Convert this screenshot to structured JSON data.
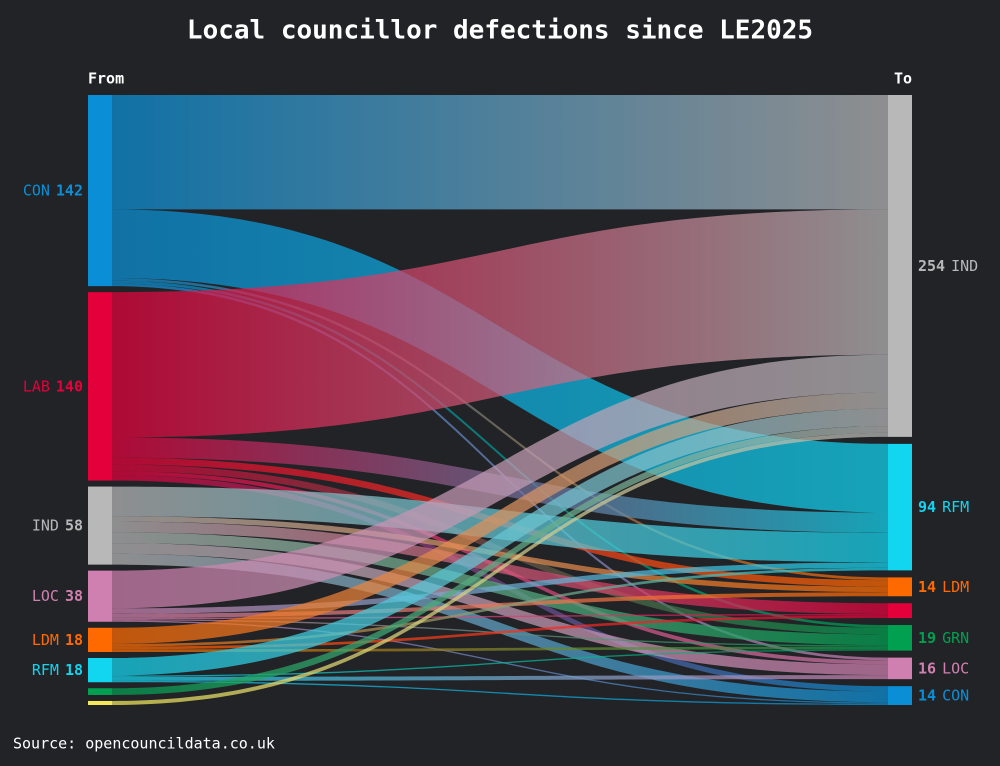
{
  "chart_data": {
    "type": "sankey",
    "title": "Local councillor defections since LE2025",
    "from_label": "From",
    "to_label": "To",
    "source_note": "Source: opencouncildata.co.uk",
    "sources": [
      {
        "name": "CON",
        "value": 142,
        "color": "#0a8fd6"
      },
      {
        "name": "LAB",
        "value": 140,
        "color": "#e4003b"
      },
      {
        "name": "IND",
        "value": 58,
        "color": "#b8b8b8"
      },
      {
        "name": "LOC",
        "value": 38,
        "color": "#d080b0"
      },
      {
        "name": "LDM",
        "value": 18,
        "color": "#ff6a00"
      },
      {
        "name": "RFM",
        "value": 18,
        "color": "#12d5f0"
      },
      {
        "name": null,
        "value": 5,
        "color": "#00a050"
      },
      {
        "name": null,
        "value": 3,
        "color": "#f2e85a"
      }
    ],
    "targets": [
      {
        "name": "IND",
        "value": 254,
        "color": "#b8b8b8"
      },
      {
        "name": "RFM",
        "value": 94,
        "color": "#12d5f0"
      },
      {
        "name": "LDM",
        "value": 14,
        "color": "#ff6a00"
      },
      {
        "name": null,
        "value": 11,
        "color": "#e4003b"
      },
      {
        "name": "GRN",
        "value": 19,
        "color": "#00a050"
      },
      {
        "name": "LOC",
        "value": 16,
        "color": "#d080b0"
      },
      {
        "name": "CON",
        "value": 14,
        "color": "#0a8fd6"
      }
    ],
    "links": [
      {
        "source": 0,
        "target": 0,
        "value": 85
      },
      {
        "source": 0,
        "target": 1,
        "value": 51
      },
      {
        "source": 0,
        "target": 2,
        "value": 2
      },
      {
        "source": 0,
        "target": 4,
        "value": 2
      },
      {
        "source": 0,
        "target": 5,
        "value": 2
      },
      {
        "source": 1,
        "target": 0,
        "value": 108
      },
      {
        "source": 1,
        "target": 1,
        "value": 15
      },
      {
        "source": 1,
        "target": 2,
        "value": 5
      },
      {
        "source": 1,
        "target": 4,
        "value": 5
      },
      {
        "source": 1,
        "target": 5,
        "value": 3
      },
      {
        "source": 1,
        "target": 6,
        "value": 4
      },
      {
        "source": 2,
        "target": 1,
        "value": 22
      },
      {
        "source": 2,
        "target": 2,
        "value": 4
      },
      {
        "source": 2,
        "target": 3,
        "value": 8
      },
      {
        "source": 2,
        "target": 4,
        "value": 8
      },
      {
        "source": 2,
        "target": 5,
        "value": 8
      },
      {
        "source": 2,
        "target": 6,
        "value": 8
      },
      {
        "source": 3,
        "target": 0,
        "value": 28
      },
      {
        "source": 3,
        "target": 1,
        "value": 4
      },
      {
        "source": 3,
        "target": 2,
        "value": 3
      },
      {
        "source": 3,
        "target": 3,
        "value": 1
      },
      {
        "source": 3,
        "target": 4,
        "value": 1
      },
      {
        "source": 3,
        "target": 6,
        "value": 1
      },
      {
        "source": 4,
        "target": 0,
        "value": 12
      },
      {
        "source": 4,
        "target": 1,
        "value": 2
      },
      {
        "source": 4,
        "target": 3,
        "value": 2
      },
      {
        "source": 4,
        "target": 4,
        "value": 2
      },
      {
        "source": 5,
        "target": 0,
        "value": 13
      },
      {
        "source": 5,
        "target": 4,
        "value": 1
      },
      {
        "source": 5,
        "target": 5,
        "value": 3
      },
      {
        "source": 5,
        "target": 6,
        "value": 1
      },
      {
        "source": 6,
        "target": 0,
        "value": 5
      },
      {
        "source": 7,
        "target": 0,
        "value": 3
      }
    ]
  }
}
